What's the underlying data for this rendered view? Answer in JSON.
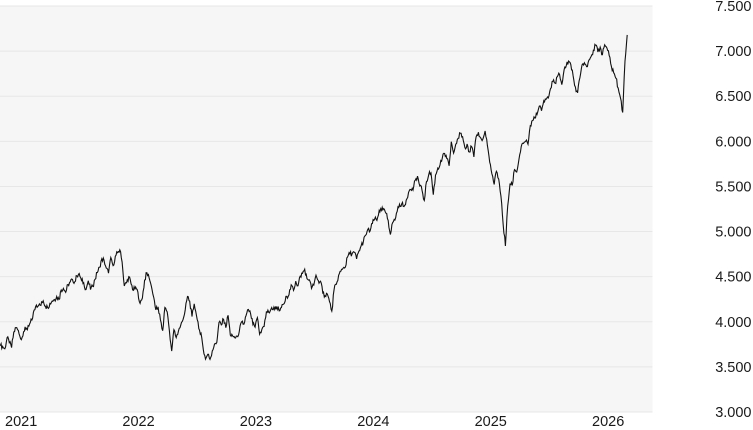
{
  "chart_data": {
    "type": "line",
    "title": "",
    "legend": "none",
    "grid": "horizontal",
    "series": [
      {
        "name": "index-price",
        "color": "#111111",
        "x_start_year": 2020.96,
        "x_end_year": 2026.3,
        "values": [
          3735,
          3727,
          3700,
          3825,
          3768,
          3714,
          3887,
          3935,
          3906,
          3811,
          3842,
          3943,
          3913,
          3975,
          4020,
          4129,
          4185,
          4180,
          4181,
          4233,
          4174,
          4156,
          4204,
          4230,
          4247,
          4280,
          4247,
          4352,
          4370,
          4327,
          4412,
          4442,
          4468,
          4442,
          4509,
          4535,
          4459,
          4433,
          4358,
          4455,
          4357,
          4392,
          4471,
          4545,
          4605,
          4698,
          4683,
          4595,
          4538,
          4712,
          4621,
          4726,
          4766,
          4797,
          4663,
          4397,
          4432,
          4501,
          4419,
          4349,
          4385,
          4329,
          4204,
          4263,
          4463,
          4543,
          4488,
          4392,
          4272,
          4132,
          4155,
          4023,
          3901,
          4158,
          4109,
          3900,
          3675,
          3912,
          3825,
          3899,
          3961,
          4023,
          4130,
          4280,
          4228,
          4057,
          4199,
          4067,
          3924,
          3873,
          3693,
          3586,
          3640,
          3583,
          3678,
          3753,
          3771,
          3993,
          3965,
          4026,
          3934,
          4072,
          3852,
          3845,
          3822,
          3840,
          3895,
          3999,
          3973,
          4071,
          4136,
          4090,
          3970,
          3940,
          4046,
          3862,
          3917,
          3948,
          4109,
          4105,
          4138,
          4134,
          4169,
          4136,
          4124,
          4192,
          4206,
          4282,
          4299,
          4410,
          4348,
          4450,
          4399,
          4505,
          4536,
          4583,
          4478,
          4465,
          4370,
          4406,
          4516,
          4457,
          4450,
          4320,
          4288,
          4309,
          4224,
          4118,
          4358,
          4415,
          4514,
          4560,
          4594,
          4605,
          4719,
          4754,
          4755,
          4770,
          4697,
          4784,
          4840,
          4891,
          4959,
          5027,
          5006,
          5089,
          5137,
          5124,
          5234,
          5235,
          5254,
          5204,
          5123,
          4967,
          5100,
          5128,
          5223,
          5303,
          5305,
          5277,
          5347,
          5432,
          5465,
          5460,
          5567,
          5615,
          5505,
          5460,
          5344,
          5554,
          5634,
          5648,
          5408,
          5626,
          5703,
          5738,
          5815,
          5865,
          5809,
          5729,
          5996,
          5870,
          5969,
          6032,
          6090,
          6051,
          5931,
          5970,
          5882,
          5942,
          5827,
          6049,
          6101,
          6040,
          6026,
          6115,
          5954,
          5770,
          5639,
          5521,
          5668,
          5581,
          5396,
          5074,
          4840,
          5283,
          5525,
          5511,
          5687,
          5660,
          5803,
          5940,
          5977,
          6001,
          5968,
          6173,
          6230,
          6260,
          6297,
          6389,
          6340,
          6450,
          6466,
          6481,
          6584,
          6664,
          6644,
          6716,
          6740,
          6629,
          6792,
          6840,
          6890,
          6852,
          6728,
          6602,
          6538,
          6705,
          6849,
          6870,
          6827,
          6900,
          6940,
          7010,
          7065,
          6990,
          7045,
          6960,
          7070,
          7035,
          6950,
          6830,
          6760,
          6700,
          6590,
          6480,
          6320,
          6890,
          7180
        ]
      }
    ],
    "x_axis": {
      "ticks": [
        {
          "label": "2021",
          "year": 2021
        },
        {
          "label": "2022",
          "year": 2022
        },
        {
          "label": "2023",
          "year": 2023
        },
        {
          "label": "2024",
          "year": 2024
        },
        {
          "label": "2025",
          "year": 2025
        },
        {
          "label": "2026",
          "year": 2026
        }
      ]
    },
    "y_axis": {
      "side": "right",
      "min": 3000,
      "max": 7500,
      "ticks": [
        {
          "label": "7.500",
          "value": 7500
        },
        {
          "label": "7.000",
          "value": 7000
        },
        {
          "label": "6.500",
          "value": 6500
        },
        {
          "label": "6.000",
          "value": 6000
        },
        {
          "label": "5.500",
          "value": 5500
        },
        {
          "label": "5.000",
          "value": 5000
        },
        {
          "label": "4.500",
          "value": 4500
        },
        {
          "label": "4.000",
          "value": 4000
        },
        {
          "label": "3.500",
          "value": 3500
        },
        {
          "label": "3.000",
          "value": 3000
        }
      ]
    },
    "colors": {
      "page_background": "#ffffff",
      "plot_background": "#f6f6f6",
      "gridline": "#e7e7e7",
      "line": "#111111",
      "label": "#1a1a1a"
    }
  }
}
